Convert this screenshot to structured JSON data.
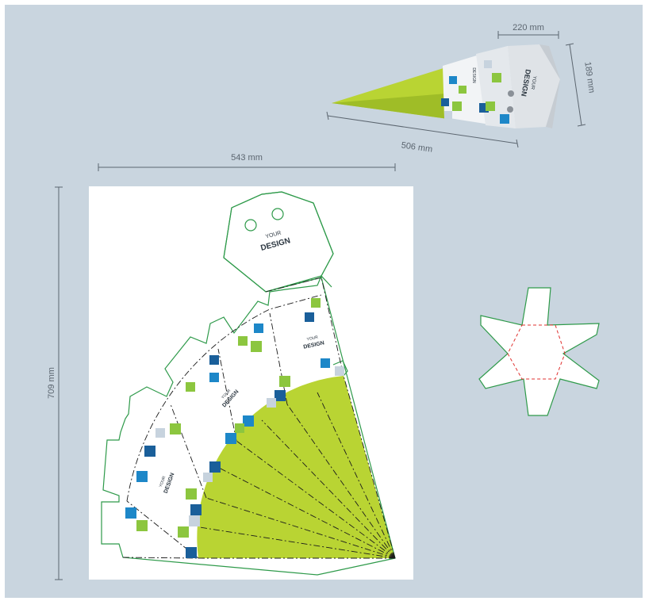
{
  "dimensions": {
    "cone_length": "220 mm",
    "cone_height": "189 mm",
    "cone_side": "506 mm",
    "net_width": "543 mm",
    "net_height": "709 mm"
  },
  "design_label": {
    "line1": "YOUR",
    "line2": "DESIGN"
  },
  "colors": {
    "background": "#c9d5df",
    "die_line": "#2e9a4a",
    "cone_green": "#b9d433",
    "square_blue": "#1d87c8",
    "square_dark_blue": "#1a5f9a",
    "square_green": "#8cc63f",
    "square_grey": "#c7d3de",
    "fold_red": "#e0312f"
  }
}
